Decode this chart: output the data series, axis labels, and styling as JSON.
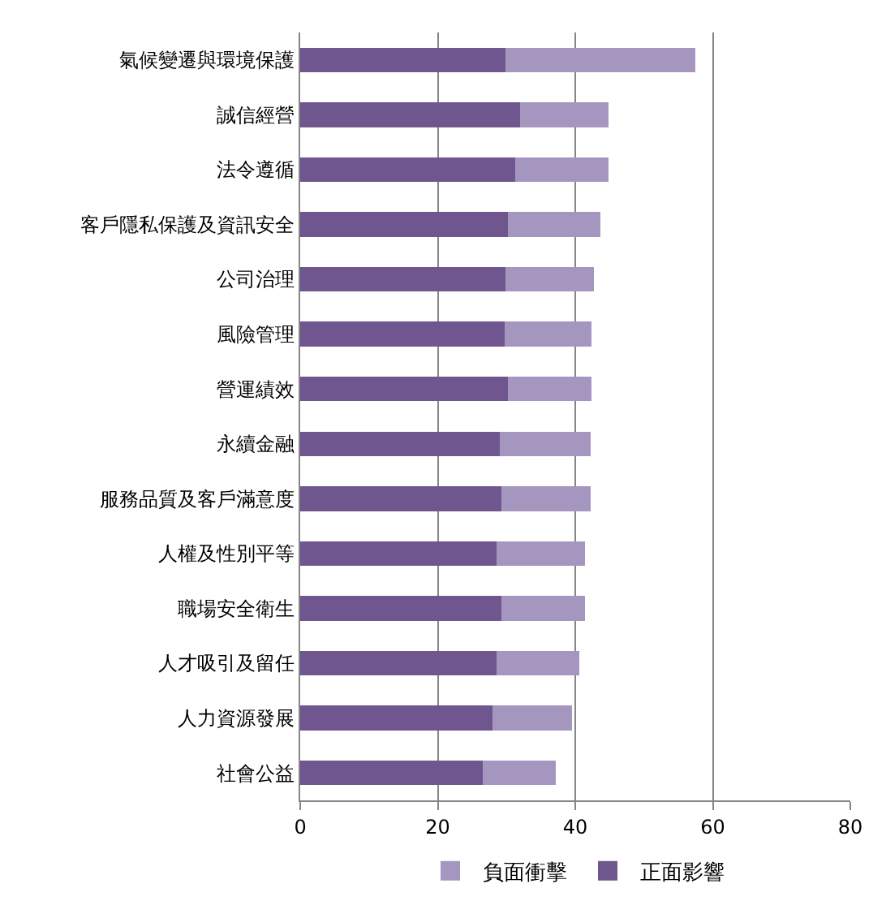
{
  "chart_data": {
    "type": "bar",
    "orientation": "horizontal",
    "stacked": true,
    "categories": [
      "氣候變遷與環境保護",
      "誠信經營",
      "法令遵循",
      "客戶隱私保護及資訊安全",
      "公司治理",
      "風險管理",
      "營運績效",
      "永續金融",
      "服務品質及客戶滿意度",
      "人權及性別平等",
      "職場安全衛生",
      "人才吸引及留任",
      "人力資源發展",
      "社會公益"
    ],
    "series": [
      {
        "name": "正面影響",
        "color": "#6f568f",
        "values": [
          29.9,
          32.0,
          31.3,
          30.2,
          29.9,
          29.7,
          30.2,
          29.0,
          29.3,
          28.5,
          29.3,
          28.5,
          28.0,
          26.6
        ]
      },
      {
        "name": "負面衝擊",
        "color": "#a596c0",
        "values": [
          27.6,
          12.8,
          13.5,
          13.4,
          12.8,
          12.7,
          12.2,
          13.2,
          12.9,
          12.9,
          12.1,
          12.1,
          11.5,
          10.6
        ]
      }
    ],
    "xlim": [
      0,
      80
    ],
    "xticks": [
      0,
      20,
      40,
      60,
      80
    ],
    "grid": "x",
    "legend": "bottom"
  }
}
